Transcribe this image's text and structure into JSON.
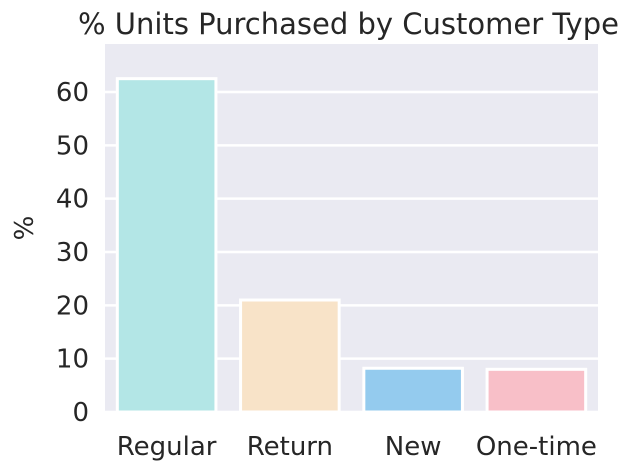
{
  "chart_data": {
    "type": "bar",
    "title": "% Units Purchased by Customer Type",
    "xlabel": "",
    "ylabel": "%",
    "categories": [
      "Regular",
      "Return",
      "New",
      "One-time"
    ],
    "values": [
      62.5,
      21.0,
      8.2,
      8.0
    ],
    "colors": [
      "#b3e6e6",
      "#f8e3c8",
      "#94cbee",
      "#f8bfc8"
    ],
    "ylim": [
      0,
      69
    ],
    "yticks": [
      0,
      10,
      20,
      30,
      40,
      50,
      60
    ],
    "grid": true,
    "legend": "none",
    "background": "#eaeaf2"
  }
}
